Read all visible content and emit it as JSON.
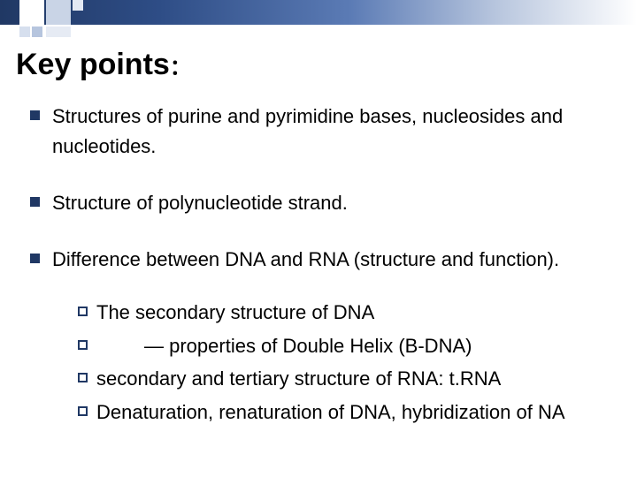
{
  "theme": {
    "accent": "#203864",
    "gradient_start": "#203864",
    "gradient_end": "#ffffff",
    "background": "#ffffff",
    "text_color": "#000000",
    "title_fontsize_main": 34,
    "title_fontsize_colon": 24,
    "body_fontsize": 22
  },
  "title": {
    "main": "Key points",
    "suffix": "："
  },
  "points": [
    {
      "text": "Structures of purine and pyrimidine bases, nucleosides and nucleotides."
    },
    {
      "text": "Structure of polynucleotide strand."
    },
    {
      "text": "Difference between DNA and RNA (structure and function).",
      "sub": [
        {
          "text": "The secondary structure of DNA"
        },
        {
          "text": "— properties of Double Helix (B-DNA)",
          "indented": true
        },
        {
          "text": "secondary and tertiary structure of RNA: t.RNA"
        },
        {
          "text": "Denaturation, renaturation of DNA, hybridization of NA"
        }
      ]
    }
  ]
}
